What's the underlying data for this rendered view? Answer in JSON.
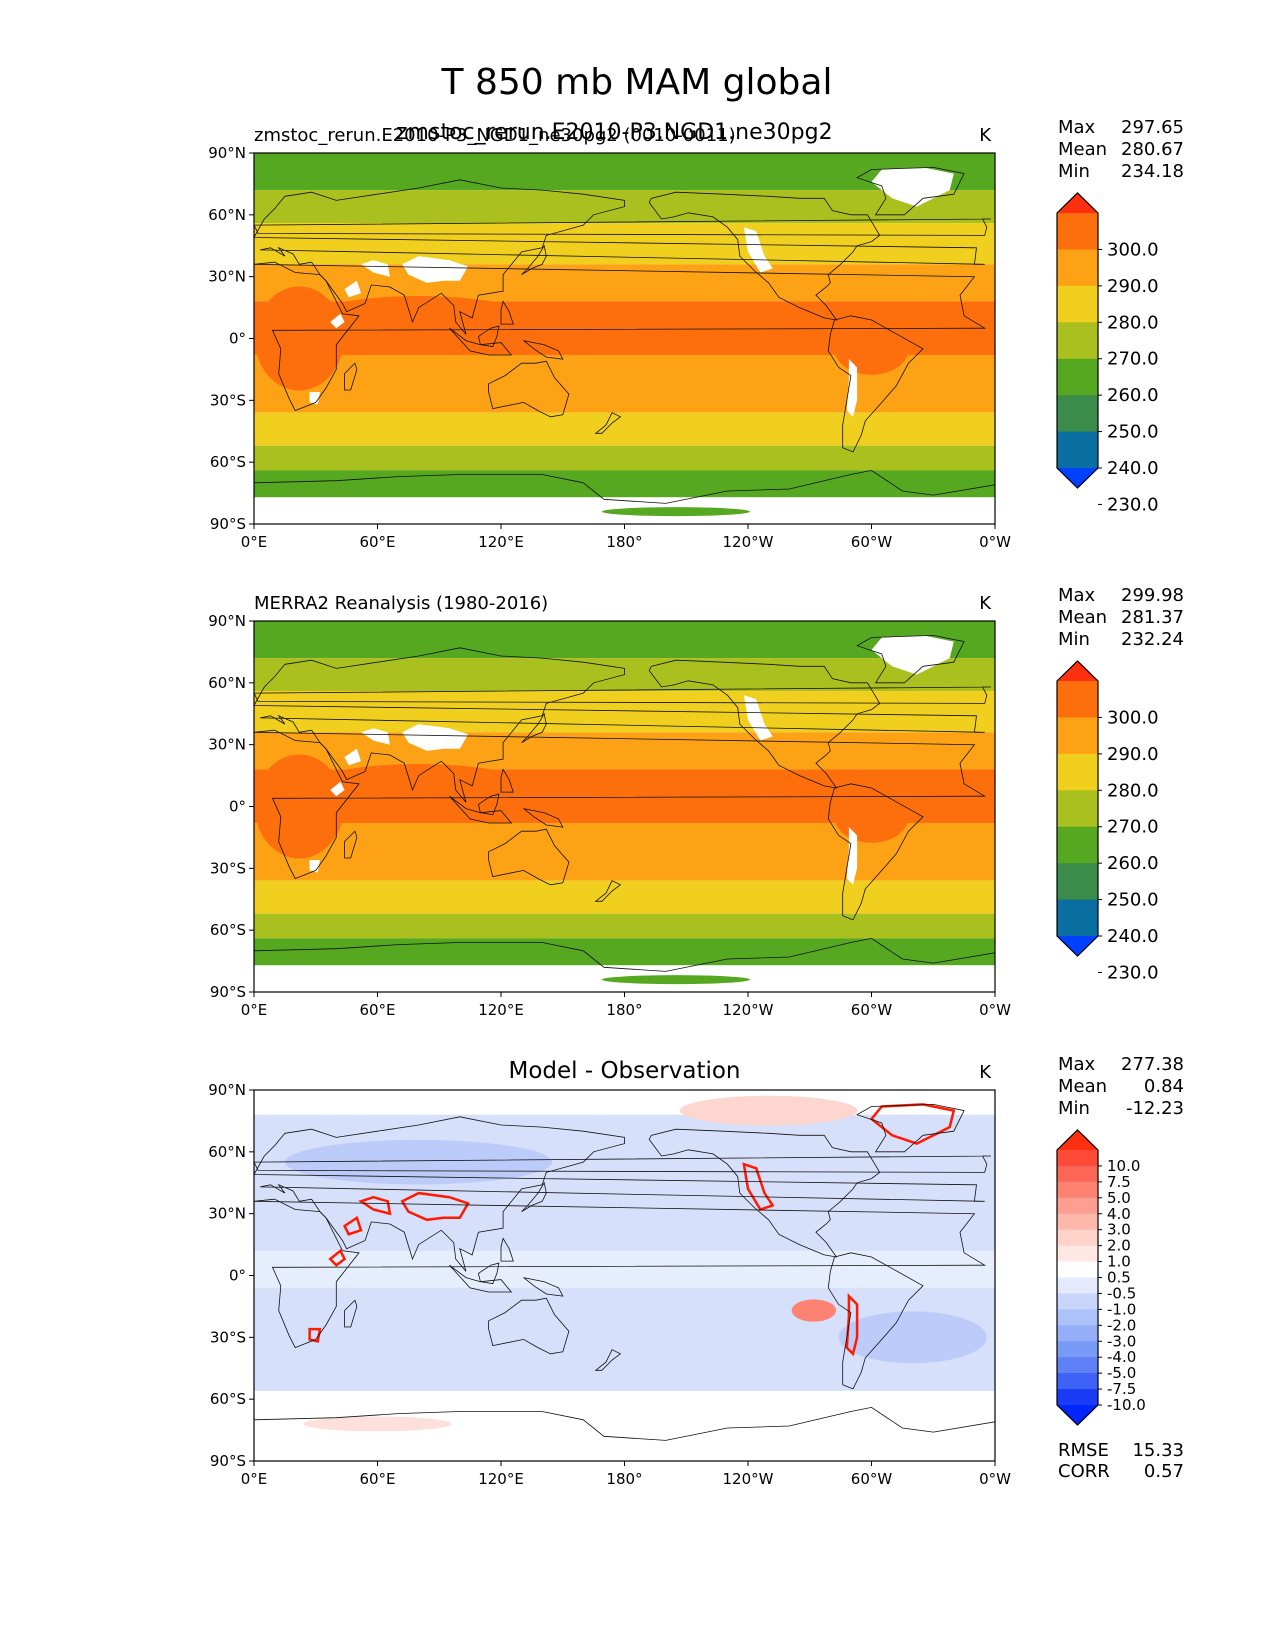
{
  "title": "T 850 mb MAM global",
  "colors": {
    "ocean_bands_main": [
      "#2b9a2b",
      "#aac01e",
      "#f0cf1e",
      "#fea215",
      "#fd6e0c",
      "#fea215",
      "#f0cf1e",
      "#aac01e",
      "#55a820"
    ],
    "ocean_bands_diff": [
      "#d0dbfa",
      "#bfcefa",
      "#ffffff",
      "#ffe0e0"
    ],
    "land_white": "#ffffff",
    "hot_contour": "#ff1a00"
  },
  "axes": {
    "x_ticks": [
      "0°E",
      "60°E",
      "120°E",
      "180°",
      "120°W",
      "60°W",
      "0°W"
    ],
    "y_ticks": [
      "90°N",
      "60°N",
      "30°N",
      "0°",
      "30°S",
      "60°S",
      "90°S"
    ]
  },
  "panels": [
    {
      "title_left": "zmstoc_rerun.E2010-P3_NGD1_ne30pg2 (0010-0011)",
      "title_overlap": "zmstoc_rerun.E2010-P3.NGD1.ne30pg2",
      "title_center": "",
      "units": "K",
      "stats": {
        "max_label": "Max",
        "max": "297.65",
        "mean_label": "Mean",
        "mean": "280.67",
        "min_label": "Min",
        "min": "234.18"
      },
      "extra_stats": null
    },
    {
      "title_left": "MERRA2 Reanalysis (1980-2016)",
      "title_overlap": "",
      "title_center": "",
      "units": "K",
      "stats": {
        "max_label": "Max",
        "max": "299.98",
        "mean_label": "Mean",
        "mean": "281.37",
        "min_label": "Min",
        "min": "232.24"
      },
      "extra_stats": null
    },
    {
      "title_left": "",
      "title_overlap": "",
      "title_center": "Model - Observation",
      "units": "K",
      "stats": {
        "max_label": "Max",
        "max": "277.38",
        "mean_label": "Mean",
        "mean": "0.84",
        "min_label": "Min",
        "min": "-12.23"
      },
      "extra_stats": {
        "rmse_label": "RMSE",
        "rmse": "15.33",
        "corr_label": "CORR",
        "corr": "0.57"
      }
    }
  ],
  "colorbar_main": {
    "labels": [
      "300.0",
      "290.0",
      "280.0",
      "270.0",
      "260.0",
      "250.0",
      "240.0",
      "230.0"
    ],
    "colors": [
      "#ff3010",
      "#fd6e0c",
      "#fea215",
      "#f0cf1e",
      "#aac01e",
      "#55a820",
      "#3b8c4a",
      "#0b6ea0",
      "#0040ff"
    ]
  },
  "colorbar_diff": {
    "labels": [
      "10.0",
      "7.5",
      "5.0",
      "4.0",
      "3.0",
      "2.0",
      "1.0",
      "0.5",
      "-0.5",
      "-1.0",
      "-2.0",
      "-3.0",
      "-4.0",
      "-5.0",
      "-7.5",
      "-10.0"
    ],
    "colors": [
      "#ff3010",
      "#ff4a38",
      "#fd6656",
      "#fd8272",
      "#fd9e90",
      "#ffb8ac",
      "#ffd2ca",
      "#ffe8e4",
      "#ffffff",
      "#e4eafc",
      "#c8d6fb",
      "#aec2fa",
      "#94aef8",
      "#7a9af7",
      "#5f80f6",
      "#3f62f6",
      "#1a3cf8",
      "#0026ff"
    ]
  },
  "chart_data": [
    {
      "type": "heatmap",
      "title": "zmstoc_rerun.E2010-P3_NGD1_ne30pg2 (0010-0011)",
      "variable": "T 850 mb MAM global",
      "units": "K",
      "xlabel": "",
      "ylabel": "",
      "x_ticks": [
        "0°E",
        "60°E",
        "120°E",
        "180°",
        "120°W",
        "60°W",
        "0°W"
      ],
      "y_ticks": [
        "90°N",
        "60°N",
        "30°N",
        "0°",
        "30°S",
        "60°S",
        "90°S"
      ],
      "xlim": [
        0,
        360
      ],
      "ylim": [
        -90,
        90
      ],
      "levels": [
        230,
        240,
        250,
        260,
        270,
        280,
        290,
        300
      ],
      "max": 297.65,
      "mean": 280.67,
      "min": 234.18
    },
    {
      "type": "heatmap",
      "title": "MERRA2 Reanalysis (1980-2016)",
      "variable": "T 850 mb MAM global",
      "units": "K",
      "xlabel": "",
      "ylabel": "",
      "x_ticks": [
        "0°E",
        "60°E",
        "120°E",
        "180°",
        "120°W",
        "60°W",
        "0°W"
      ],
      "y_ticks": [
        "90°N",
        "60°N",
        "30°N",
        "0°",
        "30°S",
        "60°S",
        "90°S"
      ],
      "xlim": [
        0,
        360
      ],
      "ylim": [
        -90,
        90
      ],
      "levels": [
        230,
        240,
        250,
        260,
        270,
        280,
        290,
        300
      ],
      "max": 299.98,
      "mean": 281.37,
      "min": 232.24
    },
    {
      "type": "heatmap",
      "title": "Model - Observation",
      "variable": "T 850 mb MAM global",
      "units": "K",
      "xlabel": "",
      "ylabel": "",
      "x_ticks": [
        "0°E",
        "60°E",
        "120°E",
        "180°",
        "120°W",
        "60°W",
        "0°W"
      ],
      "y_ticks": [
        "90°N",
        "60°N",
        "30°N",
        "0°",
        "30°S",
        "60°S",
        "90°S"
      ],
      "xlim": [
        0,
        360
      ],
      "ylim": [
        -90,
        90
      ],
      "levels": [
        -10,
        -7.5,
        -5,
        -4,
        -3,
        -2,
        -1,
        -0.5,
        0.5,
        1,
        2,
        3,
        4,
        5,
        7.5,
        10
      ],
      "max": 277.38,
      "mean": 0.84,
      "min": -12.23,
      "rmse": 15.33,
      "corr": 0.57
    }
  ]
}
